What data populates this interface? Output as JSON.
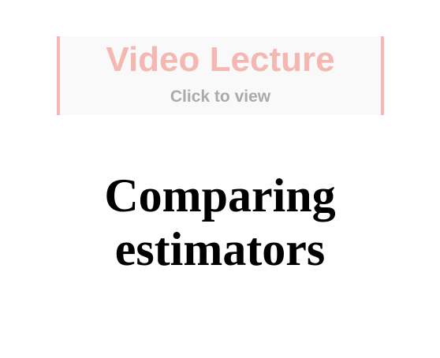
{
  "video_banner": {
    "title": "Video Lecture",
    "subtitle": "Click to view"
  },
  "lecture": {
    "title_line1": "Comparing",
    "title_line2": "estimators"
  },
  "colors": {
    "banner_accent": "#f4b7b1",
    "banner_background": "#f9f9f9",
    "subtitle_text": "#aaaaaa",
    "title_text": "#000000"
  }
}
